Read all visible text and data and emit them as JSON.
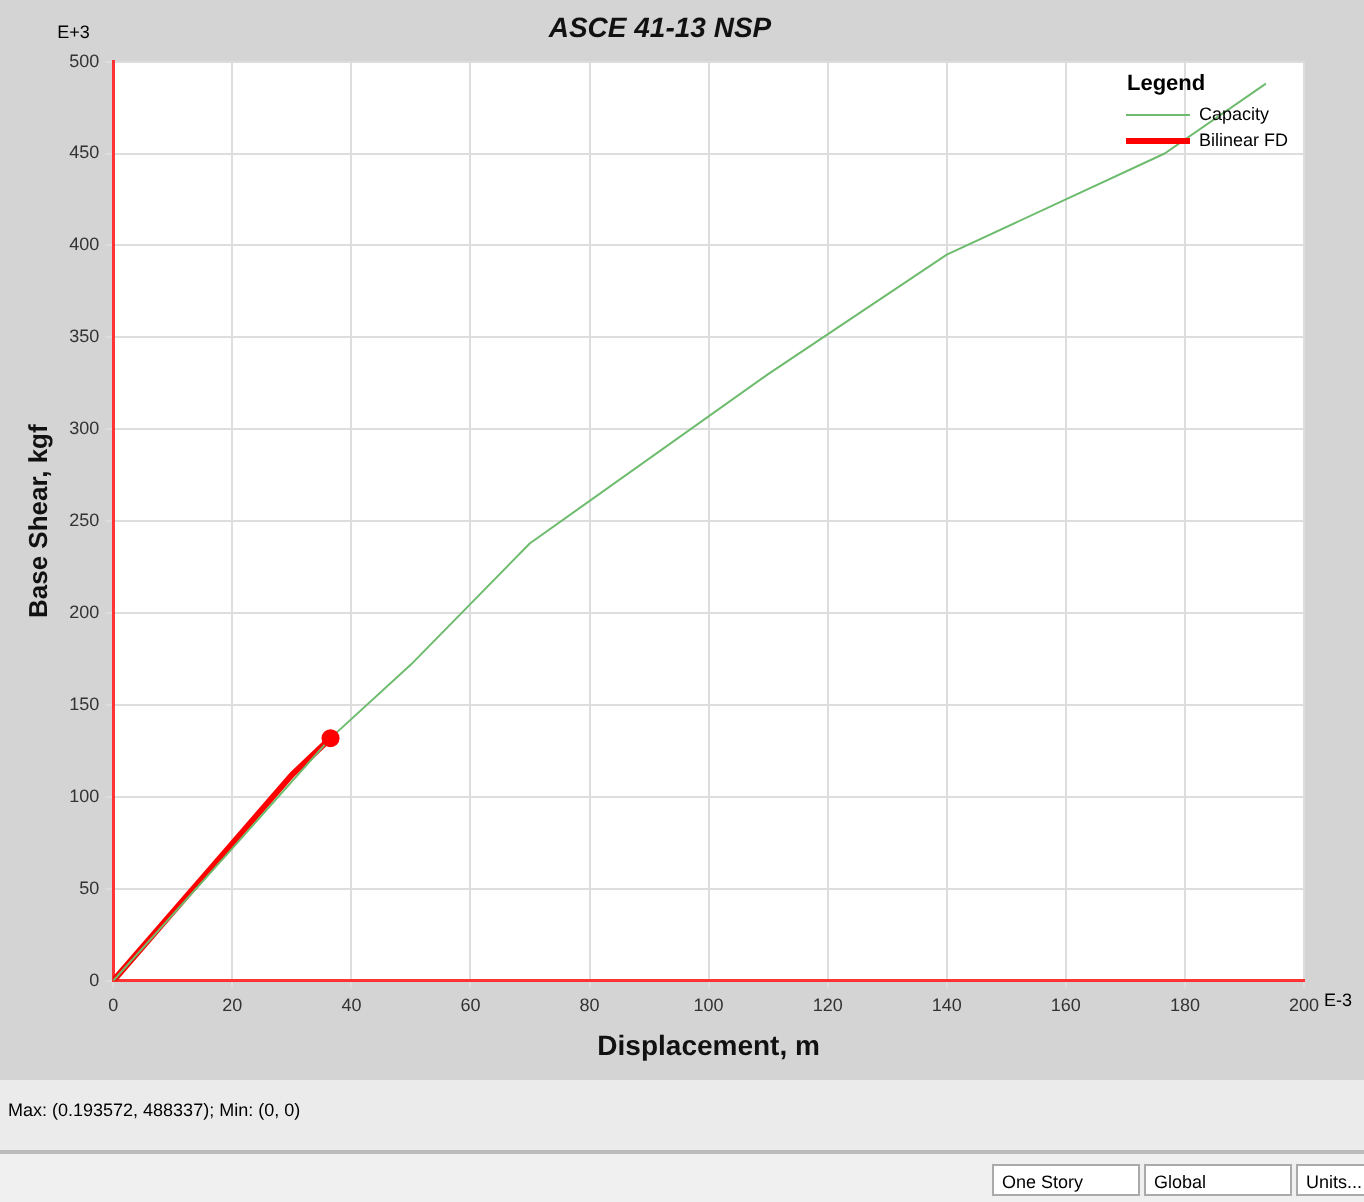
{
  "chart_data": {
    "type": "line",
    "title": "ASCE 41-13 NSP",
    "xlabel": "Displacement, m",
    "ylabel": "Base Shear, kgf",
    "legend_title": "Legend",
    "series": [
      {
        "name": "Capacity",
        "color": "#6dbb6d",
        "x": [
          0,
          20,
          36.5,
          50,
          70,
          110,
          140,
          176.6,
          193.6
        ],
        "values": [
          0,
          72,
          132,
          172,
          238,
          330,
          395,
          450,
          488
        ]
      },
      {
        "name": "Bilinear FD",
        "color": "#ff0000",
        "x": [
          0,
          30,
          36.5
        ],
        "values": [
          0,
          112,
          132
        ]
      },
      {
        "type": "scatter",
        "color": "#ff0000",
        "x": [
          36.5
        ],
        "values": [
          132
        ],
        "marker": "circle"
      }
    ],
    "xlim": [
      0,
      200
    ],
    "xticks": [
      0,
      20,
      40,
      60,
      80,
      100,
      120,
      140,
      160,
      180,
      200
    ],
    "ylim": [
      0,
      500
    ],
    "yticks": [
      0,
      50,
      100,
      150,
      200,
      250,
      300,
      350,
      400,
      450,
      500
    ],
    "grid": true,
    "legend": "top right",
    "annotations": [
      "E+3",
      "E-3",
      "Max: (0.193572, 488337);  Min: (0, 0)",
      "One Story",
      "Global",
      "Units..."
    ]
  }
}
